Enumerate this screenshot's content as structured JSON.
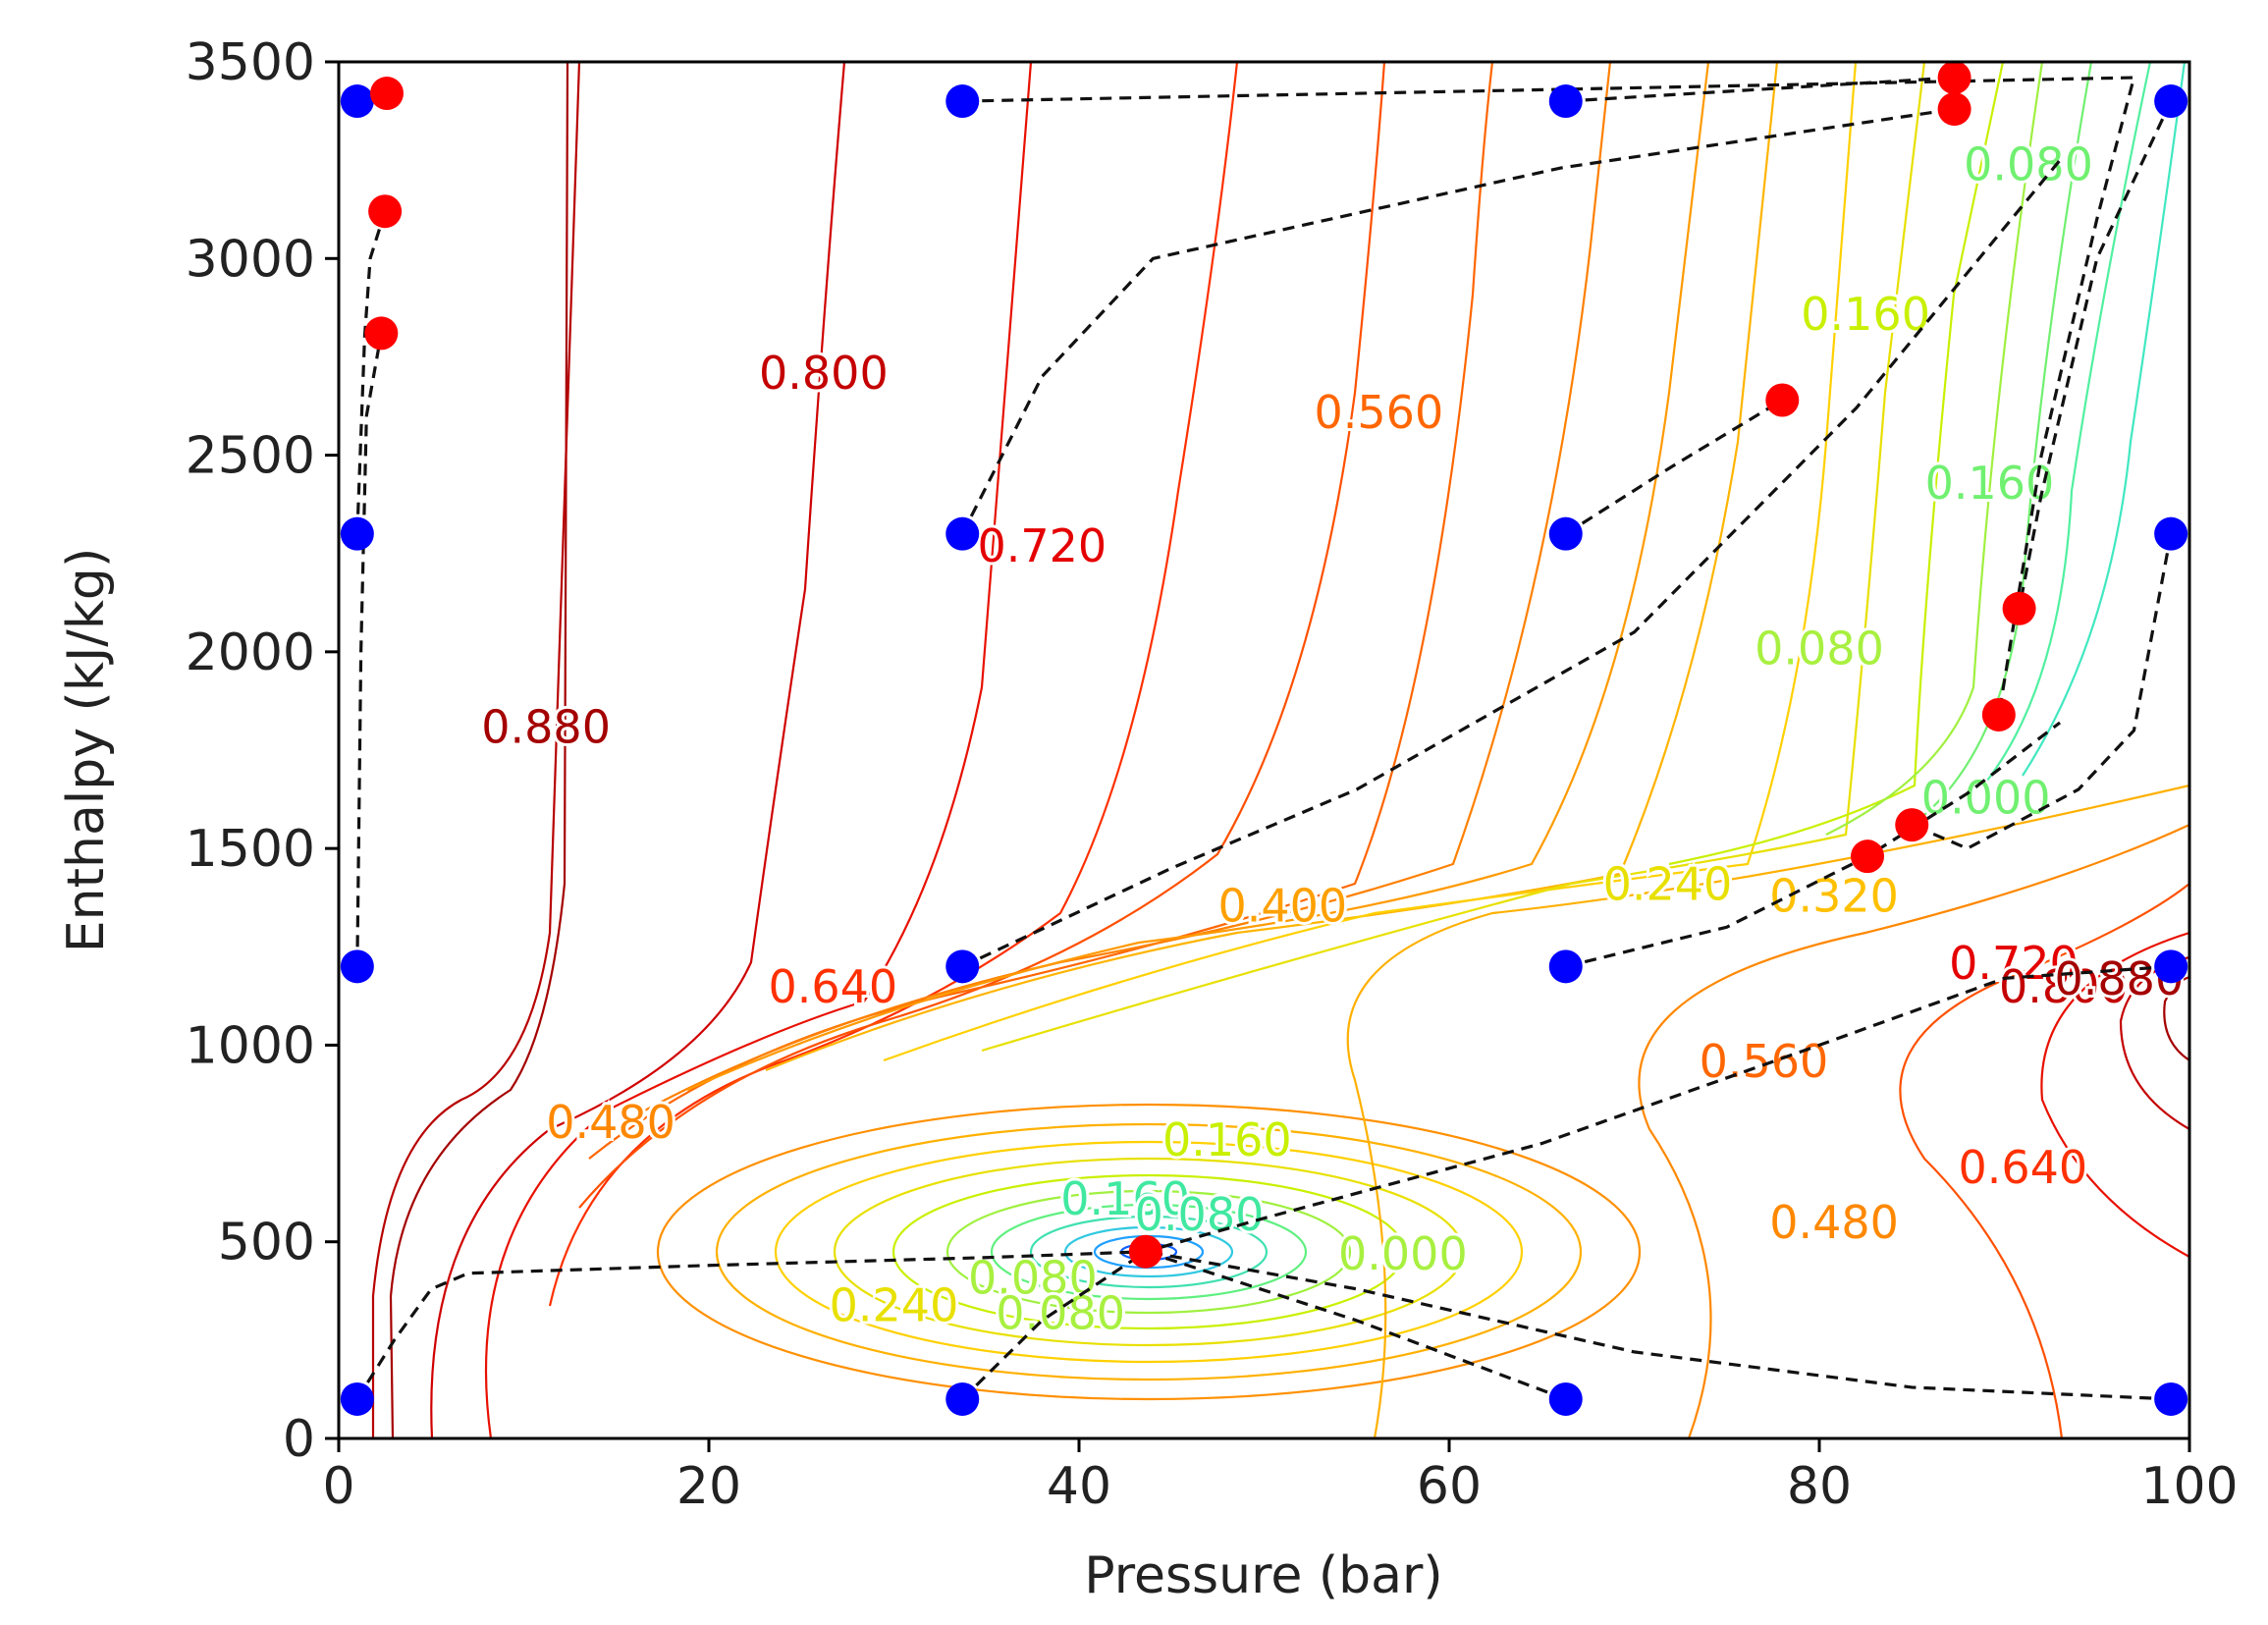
{
  "chart_data": {
    "type": "contour",
    "title": "",
    "xlabel": "Pressure (bar)",
    "ylabel": "Enthalpy (kJ/kg)",
    "xlim": [
      0,
      100
    ],
    "ylim": [
      0,
      3500
    ],
    "xticks": [
      0,
      20,
      40,
      60,
      80,
      100
    ],
    "yticks": [
      0,
      500,
      1000,
      1500,
      2000,
      2500,
      3000,
      3500
    ],
    "colormap": "rainbow (blue low, red high)",
    "contour_labels": [
      {
        "text": "0.880",
        "x": 11.2,
        "y": 1800,
        "color": "#a50000"
      },
      {
        "text": "0.800",
        "x": 26.2,
        "y": 2700,
        "color": "#c40000"
      },
      {
        "text": "0.720",
        "x": 38.0,
        "y": 2260,
        "color": "#e50000"
      },
      {
        "text": "0.640",
        "x": 26.7,
        "y": 1140,
        "color": "#ff3000"
      },
      {
        "text": "0.560",
        "x": 56.2,
        "y": 2600,
        "color": "#ff6600"
      },
      {
        "text": "0.480",
        "x": 14.7,
        "y": 795,
        "color": "#ff8800"
      },
      {
        "text": "0.400",
        "x": 51.0,
        "y": 1345,
        "color": "#ffa000"
      },
      {
        "text": "0.240",
        "x": 71.8,
        "y": 1400,
        "color": "#e8e000"
      },
      {
        "text": "0.320",
        "x": 80.8,
        "y": 1370,
        "color": "#ffc000"
      },
      {
        "text": "0.160",
        "x": 82.5,
        "y": 2850,
        "color": "#c8f000"
      },
      {
        "text": "0.080",
        "x": 80.0,
        "y": 2000,
        "color": "#a8f040"
      },
      {
        "text": "0.080",
        "x": 91.3,
        "y": 3230,
        "color": "#70f070"
      },
      {
        "text": "0.160",
        "x": 89.2,
        "y": 2420,
        "color": "#70f070"
      },
      {
        "text": "0.000",
        "x": 89.0,
        "y": 1620,
        "color": "#70f070"
      },
      {
        "text": "0.720",
        "x": 90.5,
        "y": 1200,
        "color": "#e50000"
      },
      {
        "text": "0.800",
        "x": 93.2,
        "y": 1140,
        "color": "#c40000"
      },
      {
        "text": "0.880",
        "x": 96.2,
        "y": 1160,
        "color": "#a50000"
      },
      {
        "text": "0.560",
        "x": 77.0,
        "y": 950,
        "color": "#ff6600"
      },
      {
        "text": "0.640",
        "x": 91.0,
        "y": 680,
        "color": "#ff3000"
      },
      {
        "text": "0.480",
        "x": 80.8,
        "y": 540,
        "color": "#ff8800"
      },
      {
        "text": "0.160",
        "x": 48.0,
        "y": 750,
        "color": "#c8f000"
      },
      {
        "text": "0.240",
        "x": 30.0,
        "y": 330,
        "color": "#e8e000"
      },
      {
        "text": "0.160",
        "x": 42.5,
        "y": 600,
        "color": "#40e8a0"
      },
      {
        "text": "0.080",
        "x": 46.5,
        "y": 560,
        "color": "#40e8a0"
      },
      {
        "text": "0.080",
        "x": 37.5,
        "y": 400,
        "color": "#a8f040"
      },
      {
        "text": "0.080",
        "x": 39.0,
        "y": 310,
        "color": "#a8f040"
      },
      {
        "text": "0.000",
        "x": 57.5,
        "y": 460,
        "color": "#a8f040"
      }
    ],
    "series": [
      {
        "name": "blue grid points",
        "color": "#0000ff",
        "points": [
          [
            1,
            100
          ],
          [
            1,
            1200
          ],
          [
            1,
            2300
          ],
          [
            1,
            3400
          ],
          [
            33.7,
            100
          ],
          [
            33.7,
            1200
          ],
          [
            33.7,
            2300
          ],
          [
            33.7,
            3400
          ],
          [
            66.3,
            100
          ],
          [
            66.3,
            1200
          ],
          [
            66.3,
            2300
          ],
          [
            66.3,
            3400
          ],
          [
            99,
            100
          ],
          [
            99,
            1200
          ],
          [
            99,
            2300
          ],
          [
            99,
            3400
          ]
        ]
      },
      {
        "name": "red converged points",
        "color": "#ff0000",
        "points": [
          [
            2.6,
            3420
          ],
          [
            2.5,
            3120
          ],
          [
            2.3,
            2810
          ],
          [
            43.6,
            475
          ],
          [
            78.0,
            2640
          ],
          [
            87.3,
            3460
          ],
          [
            87.3,
            3380
          ],
          [
            90.8,
            2110
          ],
          [
            89.7,
            1840
          ],
          [
            85.0,
            1560
          ],
          [
            82.6,
            1480
          ]
        ]
      }
    ],
    "trajectories": [
      {
        "name": "path from (1,100)",
        "points": [
          [
            1,
            100
          ],
          [
            3,
            250
          ],
          [
            5,
            380
          ],
          [
            7,
            420
          ],
          [
            20,
            440
          ],
          [
            35,
            460
          ],
          [
            43.6,
            475
          ]
        ]
      },
      {
        "name": "path from (1,1200)",
        "points": [
          [
            1,
            1200
          ],
          [
            1.2,
            2000
          ],
          [
            1.5,
            2600
          ],
          [
            2.3,
            2810
          ]
        ]
      },
      {
        "name": "path from (1,2300)",
        "points": [
          [
            1,
            2300
          ],
          [
            1.4,
            2800
          ],
          [
            1.7,
            3000
          ],
          [
            2.5,
            3120
          ]
        ]
      },
      {
        "name": "path from (1,3400)",
        "points": [
          [
            1,
            3400
          ],
          [
            2.6,
            3420
          ]
        ]
      },
      {
        "name": "path from (33.7,100)",
        "points": [
          [
            33.7,
            100
          ],
          [
            38,
            300
          ],
          [
            43.6,
            475
          ]
        ]
      },
      {
        "name": "path from (66.3,100)",
        "points": [
          [
            66.3,
            100
          ],
          [
            55,
            300
          ],
          [
            43.6,
            475
          ]
        ]
      },
      {
        "name": "path from (99,100)",
        "points": [
          [
            99,
            100
          ],
          [
            85,
            130
          ],
          [
            70,
            220
          ],
          [
            55,
            380
          ],
          [
            43.6,
            475
          ]
        ]
      },
      {
        "name": "path from (99,1200)",
        "points": [
          [
            99,
            1200
          ],
          [
            90,
            1170
          ],
          [
            80,
            1000
          ],
          [
            65,
            750
          ],
          [
            50,
            560
          ],
          [
            43.6,
            475
          ]
        ]
      },
      {
        "name": "path from (33.7,1200)",
        "points": [
          [
            33.7,
            1200
          ],
          [
            45,
            1450
          ],
          [
            55,
            1650
          ],
          [
            70,
            2050
          ],
          [
            82,
            2620
          ],
          [
            93,
            3250
          ]
        ]
      },
      {
        "name": "path from (33.7,2300)",
        "points": [
          [
            33.7,
            2300
          ],
          [
            38,
            2700
          ],
          [
            44,
            3000
          ],
          [
            66,
            3230
          ],
          [
            87.3,
            3380
          ]
        ]
      },
      {
        "name": "path from (33.7,3400)",
        "points": [
          [
            33.7,
            3400
          ],
          [
            66,
            3430
          ],
          [
            97,
            3460
          ],
          [
            95,
            3100
          ],
          [
            92,
            2500
          ],
          [
            89.7,
            1840
          ]
        ]
      },
      {
        "name": "path from (66.3,3400)",
        "points": [
          [
            66.3,
            3400
          ],
          [
            87.3,
            3460
          ]
        ]
      },
      {
        "name": "path from (66.3,2300)",
        "points": [
          [
            66.3,
            2300
          ],
          [
            72,
            2470
          ],
          [
            78,
            2640
          ]
        ]
      },
      {
        "name": "path from (66.3,1200)",
        "points": [
          [
            66.3,
            1200
          ],
          [
            75,
            1300
          ],
          [
            82.6,
            1480
          ],
          [
            88,
            1640
          ],
          [
            93,
            1820
          ]
        ]
      },
      {
        "name": "path from (99,3400)",
        "points": [
          [
            99,
            3400
          ],
          [
            95,
            3000
          ],
          [
            92,
            2400
          ],
          [
            90.8,
            2110
          ]
        ]
      },
      {
        "name": "path from (99,2300)",
        "points": [
          [
            99,
            2300
          ],
          [
            97,
            1800
          ],
          [
            94,
            1650
          ],
          [
            88,
            1500
          ],
          [
            85,
            1560
          ]
        ]
      }
    ]
  }
}
